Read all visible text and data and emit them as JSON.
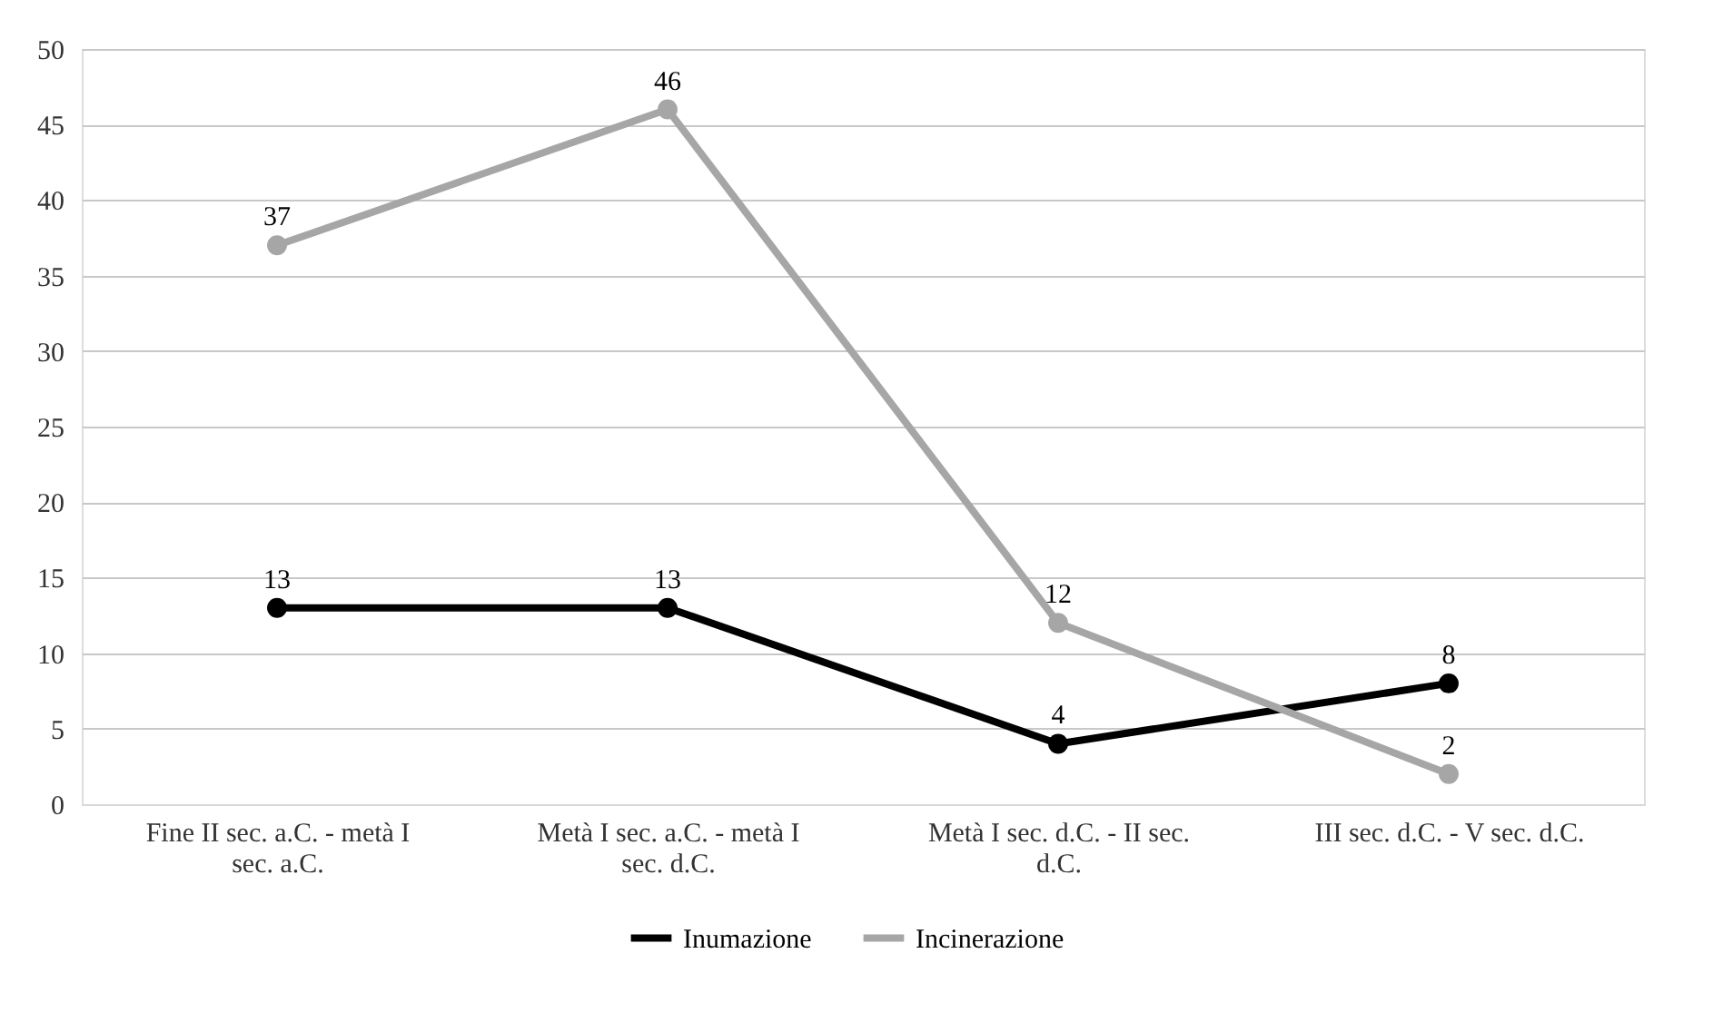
{
  "chart_data": {
    "type": "line",
    "categories": [
      "Fine II sec. a.C. - metà I sec. a.C.",
      "Metà I sec. a.C. - metà I sec. d.C.",
      "Metà I sec. d.C. - II sec. d.C.",
      "III sec. d.C. - V sec. d.C."
    ],
    "series": [
      {
        "name": "Inumazione",
        "color": "#000000",
        "values": [
          13,
          13,
          4,
          8
        ]
      },
      {
        "name": "Incinerazione",
        "color": "#a6a6a6",
        "values": [
          37,
          46,
          12,
          2
        ]
      }
    ],
    "ylim": [
      0,
      50
    ],
    "yticks": [
      0,
      5,
      10,
      15,
      20,
      25,
      30,
      35,
      40,
      45,
      50
    ],
    "grid": "y",
    "legend": "bottom",
    "marker": "circle",
    "line_style": "solid",
    "data_labels": true
  }
}
